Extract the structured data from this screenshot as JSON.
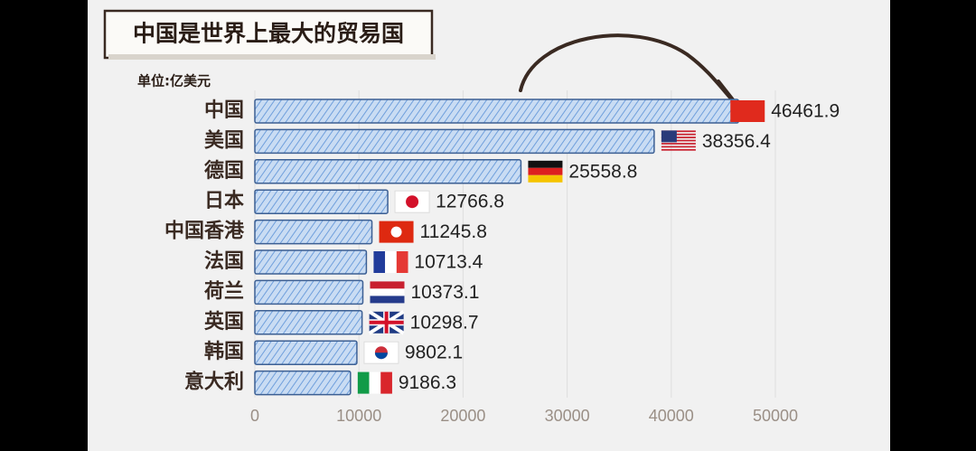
{
  "chart_data": {
    "type": "bar",
    "orientation": "horizontal",
    "title": "中国是世界上最大的贸易国",
    "unit_label": "单位:亿美元",
    "categories": [
      "中国",
      "美国",
      "德国",
      "日本",
      "中国香港",
      "法国",
      "荷兰",
      "英国",
      "韩国",
      "意大利"
    ],
    "values": [
      46461.9,
      38356.4,
      25558.8,
      12766.8,
      11245.8,
      10713.4,
      10373.1,
      10298.7,
      9802.1,
      9186.3
    ],
    "color": "#a9c9ee",
    "xlim": [
      0,
      50000
    ],
    "xticks": [
      0,
      10000,
      20000,
      30000,
      40000,
      50000
    ],
    "grid": true
  }
}
